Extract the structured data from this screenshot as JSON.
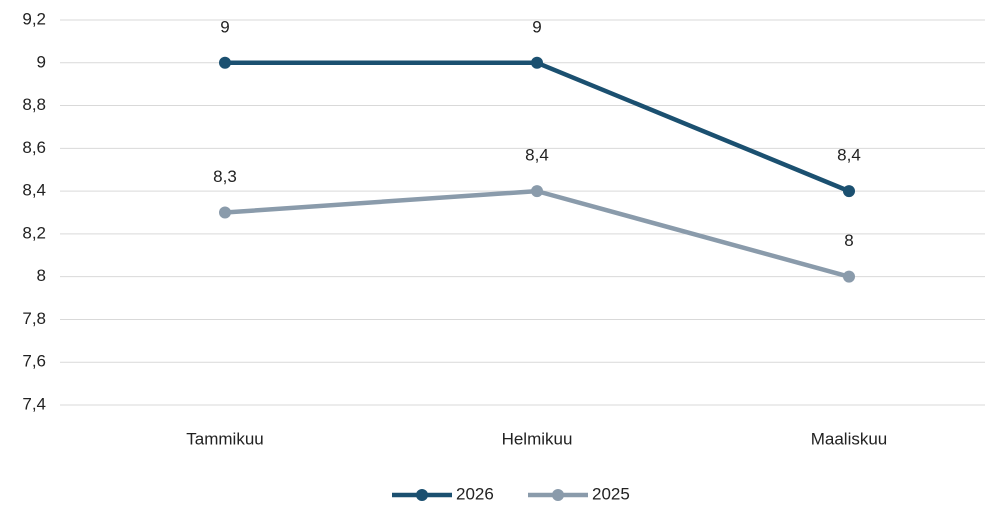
{
  "chart_data": {
    "type": "line",
    "categories": [
      "Tammikuu",
      "Helmikuu",
      "Maaliskuu"
    ],
    "series": [
      {
        "name": "2026",
        "color": "#1b5070",
        "values": [
          9,
          9,
          8.4
        ],
        "value_labels": [
          "9",
          "9",
          "8,4"
        ]
      },
      {
        "name": "2025",
        "color": "#8a9bab",
        "values": [
          8.3,
          8.4,
          8
        ],
        "value_labels": [
          "8,3",
          "8,4",
          "8"
        ]
      }
    ],
    "ylim": [
      7.4,
      9.2
    ],
    "yticks": [
      {
        "value": 7.4,
        "label": "7,4"
      },
      {
        "value": 7.6,
        "label": "7,6"
      },
      {
        "value": 7.8,
        "label": "7,8"
      },
      8,
      {
        "value": 8.2,
        "label": "8,2"
      },
      {
        "value": 8.4,
        "label": "8,4"
      },
      {
        "value": 8.6,
        "label": "8,6"
      },
      {
        "value": 8.8,
        "label": "8,8"
      },
      9,
      {
        "value": 9.2,
        "label": "9,2"
      }
    ],
    "grid": true,
    "legend": "bottom"
  }
}
